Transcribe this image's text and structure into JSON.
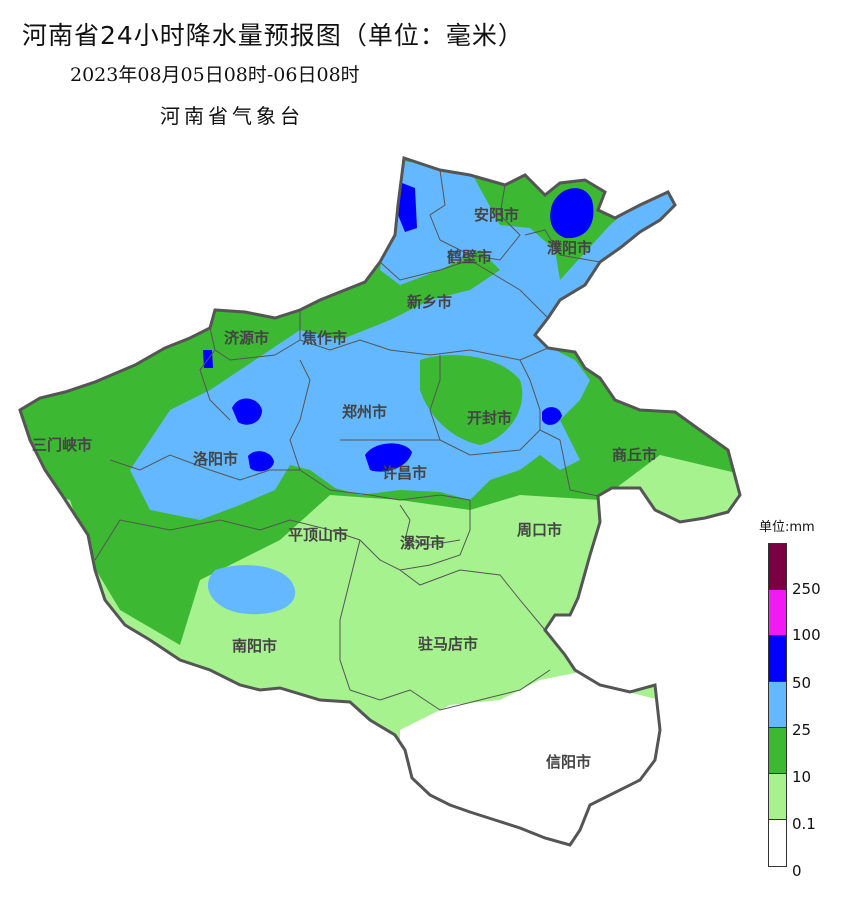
{
  "header": {
    "title": "河南省24小时降水量预报图（单位：毫米）",
    "period": "2023年08月05日08时-06日08时",
    "issuer": "河南省气象台"
  },
  "cities": [
    {
      "name": "安阳市"
    },
    {
      "name": "濮阳市"
    },
    {
      "name": "鹤壁市"
    },
    {
      "name": "新乡市"
    },
    {
      "name": "济源市"
    },
    {
      "name": "焦作市"
    },
    {
      "name": "郑州市"
    },
    {
      "name": "开封市"
    },
    {
      "name": "三门峡市"
    },
    {
      "name": "洛阳市"
    },
    {
      "name": "许昌市"
    },
    {
      "name": "商丘市"
    },
    {
      "name": "平顶山市"
    },
    {
      "name": "漯河市"
    },
    {
      "name": "周口市"
    },
    {
      "name": "南阳市"
    },
    {
      "name": "驻马店市"
    },
    {
      "name": "信阳市"
    }
  ],
  "legend": {
    "title": "单位:mm",
    "levels": [
      {
        "label": "250",
        "color": "#7a0044"
      },
      {
        "label": "100",
        "color": "#f21af2"
      },
      {
        "label": "50",
        "color": "#0000ff"
      },
      {
        "label": "25",
        "color": "#63b8ff"
      },
      {
        "label": "10",
        "color": "#3cb832"
      },
      {
        "label": "0.1",
        "color": "#a6f28f"
      },
      {
        "label": "0",
        "color": "#ffffff"
      }
    ]
  }
}
